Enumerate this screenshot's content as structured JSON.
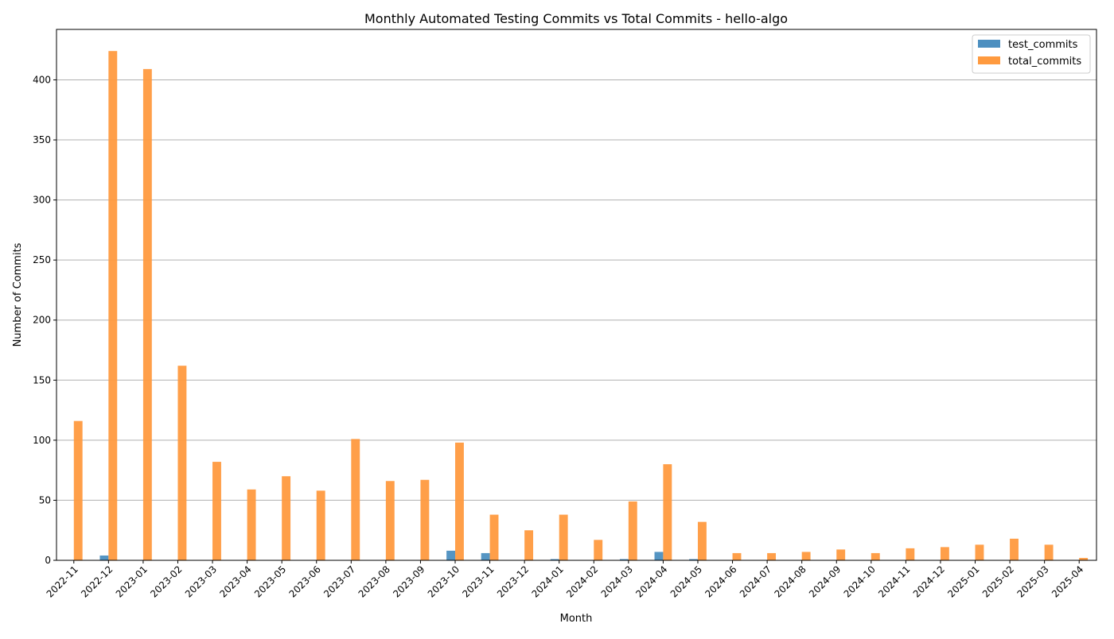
{
  "chart_data": {
    "type": "bar",
    "title": "Monthly Automated Testing Commits vs Total Commits - hello-algo",
    "xlabel": "Month",
    "ylabel": "Number of Commits",
    "ylim": [
      0,
      442
    ],
    "yticks": [
      0,
      50,
      100,
      150,
      200,
      250,
      300,
      350,
      400
    ],
    "grid": "y",
    "legend_position": "top-right",
    "categories": [
      "2022-11",
      "2022-12",
      "2023-01",
      "2023-02",
      "2023-03",
      "2023-04",
      "2023-05",
      "2023-06",
      "2023-07",
      "2023-08",
      "2023-09",
      "2023-10",
      "2023-11",
      "2023-12",
      "2024-01",
      "2024-02",
      "2024-03",
      "2024-04",
      "2024-05",
      "2024-06",
      "2024-07",
      "2024-08",
      "2024-09",
      "2024-10",
      "2024-11",
      "2024-12",
      "2025-01",
      "2025-02",
      "2025-03",
      "2025-04"
    ],
    "series": [
      {
        "name": "test_commits",
        "color": "#4c8fc0",
        "values": [
          0,
          4,
          0,
          0,
          0,
          0,
          0,
          0,
          0,
          0,
          0,
          8,
          6,
          0,
          1,
          0,
          1,
          7,
          1,
          0,
          0,
          0,
          0,
          0,
          0,
          0,
          0,
          0,
          0,
          0
        ]
      },
      {
        "name": "total_commits",
        "color": "#ff9a3f",
        "values": [
          116,
          424,
          409,
          162,
          82,
          59,
          70,
          58,
          101,
          66,
          67,
          98,
          38,
          25,
          38,
          17,
          49,
          80,
          32,
          6,
          6,
          7,
          9,
          6,
          10,
          11,
          13,
          18,
          13,
          2
        ]
      }
    ]
  }
}
